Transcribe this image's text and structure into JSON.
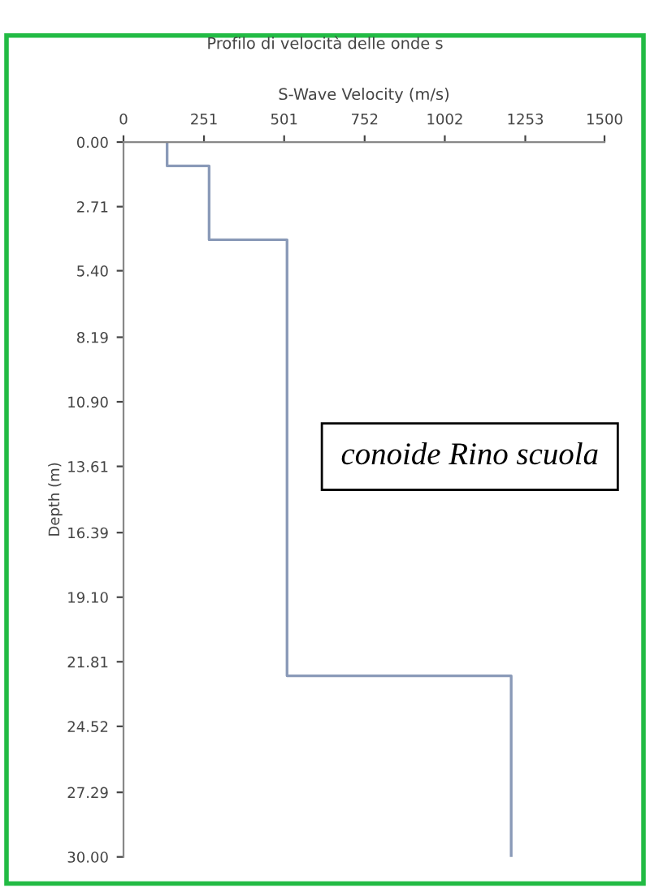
{
  "chart_data": {
    "type": "line",
    "title": "Profilo di velocità delle onde s",
    "xlabel": "S-Wave Velocity (m/s)",
    "ylabel": "Depth (m)",
    "x": [
      136,
      136,
      267,
      267,
      510,
      510,
      1209,
      1209
    ],
    "series": [
      {
        "color": "#8a9ab8",
        "values": [
          0,
          1.0,
          1.0,
          4.1,
          4.1,
          22.4,
          22.4,
          30
        ]
      }
    ],
    "xlim": [
      0,
      1500
    ],
    "xticks": [
      0,
      251,
      501,
      752,
      1002,
      1253,
      1500
    ],
    "ylim": [
      30,
      0
    ],
    "yticks": [
      {
        "value": 0,
        "label": "0.00"
      },
      2.71,
      {
        "value": 5.4,
        "label": "5.40"
      },
      8.19,
      {
        "value": 10.9,
        "label": "10.90"
      },
      13.61,
      16.39,
      {
        "value": 19.1,
        "label": "19.10"
      },
      21.81,
      24.52,
      27.29,
      {
        "value": 30,
        "label": "30.00"
      }
    ],
    "annotations": [
      "conoide Rino scuola"
    ],
    "grid": false,
    "legend": false,
    "marker": "none",
    "line_style": "solid"
  }
}
